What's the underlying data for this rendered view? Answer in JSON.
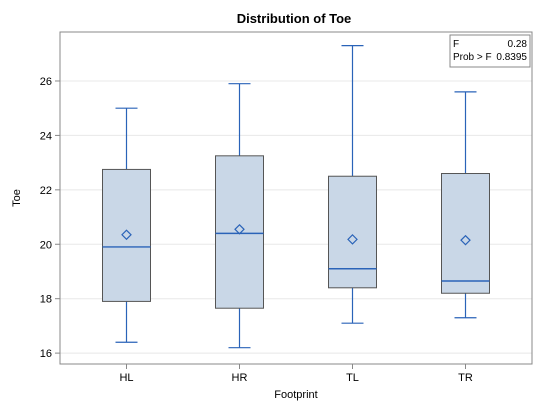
{
  "chart_data": {
    "type": "box",
    "title": "Distribution of Toe",
    "xlabel": "Footprint",
    "ylabel": "Toe",
    "categories": [
      "HL",
      "HR",
      "TL",
      "TR"
    ],
    "boxes": [
      {
        "category": "HL",
        "min": 16.4,
        "q1": 17.9,
        "median": 19.9,
        "q3": 22.75,
        "max": 25.0,
        "mean": 20.35
      },
      {
        "category": "HR",
        "min": 16.2,
        "q1": 17.65,
        "median": 20.4,
        "q3": 23.25,
        "max": 25.9,
        "mean": 20.55
      },
      {
        "category": "TL",
        "min": 17.1,
        "q1": 18.4,
        "median": 19.1,
        "q3": 22.5,
        "max": 27.3,
        "mean": 20.18
      },
      {
        "category": "TR",
        "min": 17.3,
        "q1": 18.2,
        "median": 18.65,
        "q3": 22.6,
        "max": 25.6,
        "mean": 20.15
      }
    ],
    "ylim": [
      15.6,
      27.8
    ],
    "yticks": [
      16,
      18,
      20,
      22,
      24,
      26
    ],
    "grid": true,
    "stats_inset": {
      "rows": [
        {
          "label": "F",
          "value": "0.28"
        },
        {
          "label": "Prob > F",
          "value": "0.8395"
        }
      ],
      "position": "top-right"
    },
    "colors": {
      "box_fill": "#c9d7e7",
      "box_stroke": "#555555",
      "whisker": "#2a63b8",
      "median": "#2a63b8",
      "mean_marker": "#2a63b8",
      "grid": "#e8e8e8",
      "frame": "#888888",
      "text": "#000000"
    }
  }
}
